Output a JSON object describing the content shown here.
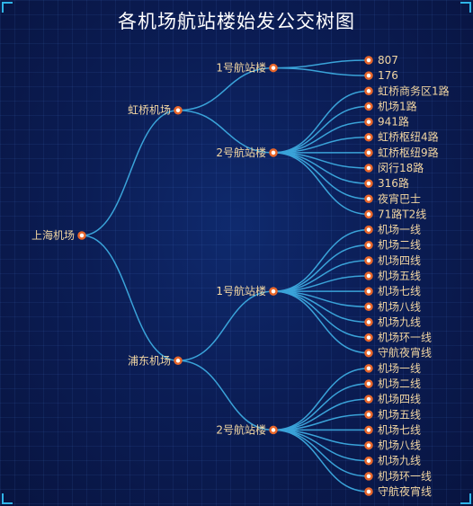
{
  "title": "各机场航站楼始发公交树图",
  "colors": {
    "edge": "#3aa3d9",
    "node_stroke": "#e8662a",
    "label": "#f2d6a2"
  },
  "tree": {
    "name": "上海机场",
    "children": [
      {
        "name": "虹桥机场",
        "children": [
          {
            "name": "1号航站楼",
            "children": [
              {
                "name": "807"
              },
              {
                "name": "176"
              }
            ]
          },
          {
            "name": "2号航站楼",
            "children": [
              {
                "name": "虹桥商务区1路"
              },
              {
                "name": "机场1路"
              },
              {
                "name": "941路"
              },
              {
                "name": "虹桥枢纽4路"
              },
              {
                "name": "虹桥枢纽9路"
              },
              {
                "name": "闵行18路"
              },
              {
                "name": "316路"
              },
              {
                "name": "夜宵巴士"
              },
              {
                "name": "71路T2线"
              }
            ]
          }
        ]
      },
      {
        "name": "浦东机场",
        "children": [
          {
            "name": "1号航站楼",
            "children": [
              {
                "name": "机场一线"
              },
              {
                "name": "机场二线"
              },
              {
                "name": "机场四线"
              },
              {
                "name": "机场五线"
              },
              {
                "name": "机场七线"
              },
              {
                "name": "机场八线"
              },
              {
                "name": "机场九线"
              },
              {
                "name": "机场环一线"
              },
              {
                "name": "守航夜宵线"
              }
            ]
          },
          {
            "name": "2号航站楼",
            "children": [
              {
                "name": "机场一线"
              },
              {
                "name": "机场二线"
              },
              {
                "name": "机场四线"
              },
              {
                "name": "机场五线"
              },
              {
                "name": "机场七线"
              },
              {
                "name": "机场八线"
              },
              {
                "name": "机场九线"
              },
              {
                "name": "机场环一线"
              },
              {
                "name": "守航夜宵线"
              }
            ]
          }
        ]
      }
    ]
  }
}
